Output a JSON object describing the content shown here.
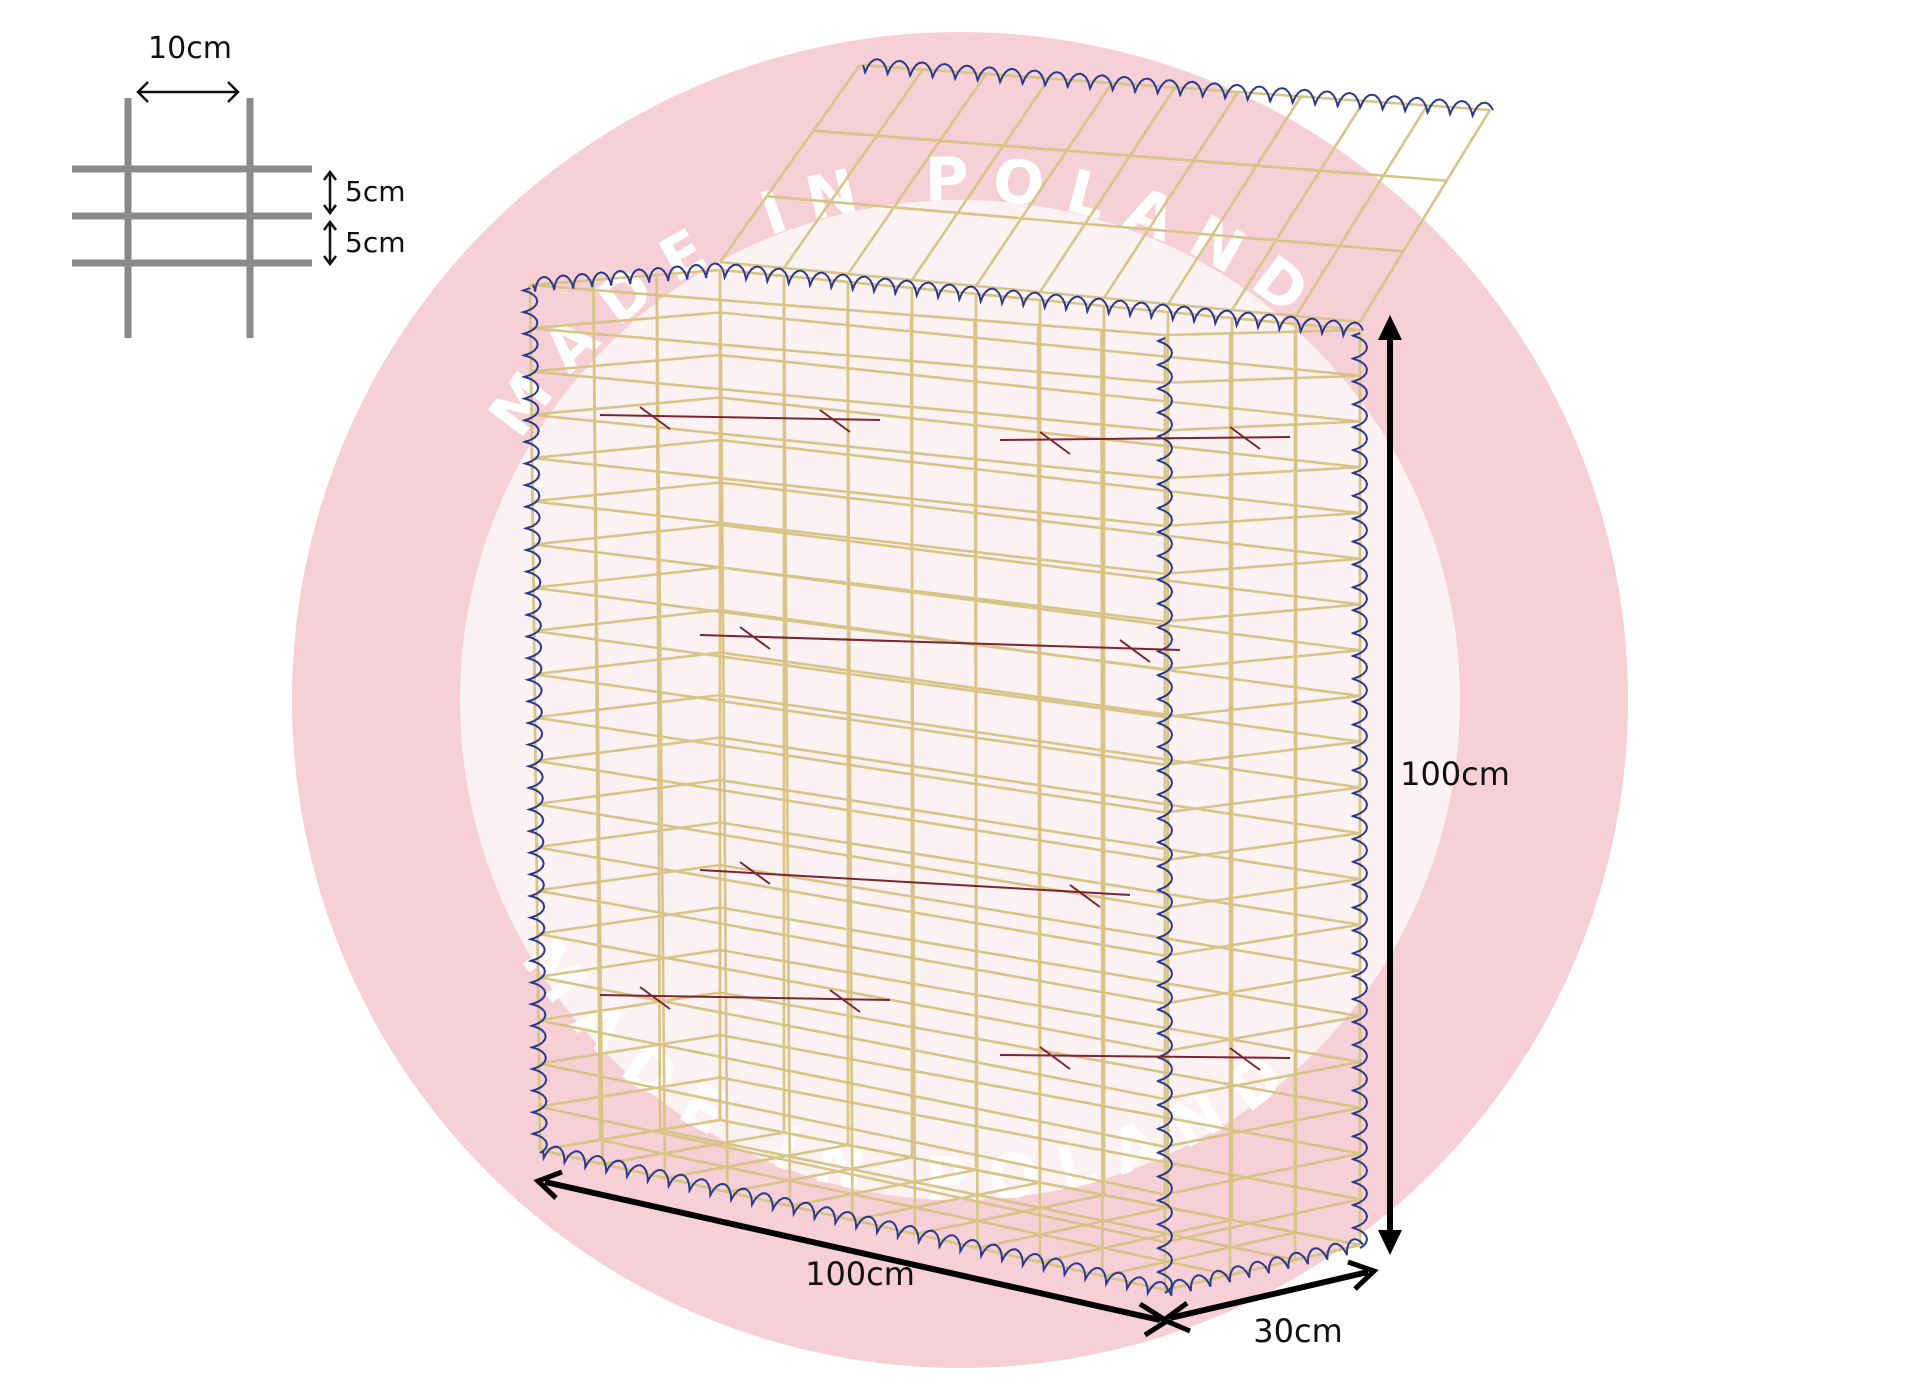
{
  "watermark": {
    "top_text": "MADE IN POLAND",
    "bottom_text": "MADE IN POLAND",
    "color": "#f4c9cf"
  },
  "mesh_detail": {
    "horizontal_spacing": "10cm",
    "vertical_spacing_1": "5cm",
    "vertical_spacing_2": "5cm"
  },
  "dimensions": {
    "height": "100cm",
    "length": "100cm",
    "depth": "30cm"
  },
  "colors": {
    "wire": "#d8c487",
    "spiral": "#2a3a8c",
    "clip": "#7a2530",
    "detail_wire": "#8a8a8a"
  }
}
